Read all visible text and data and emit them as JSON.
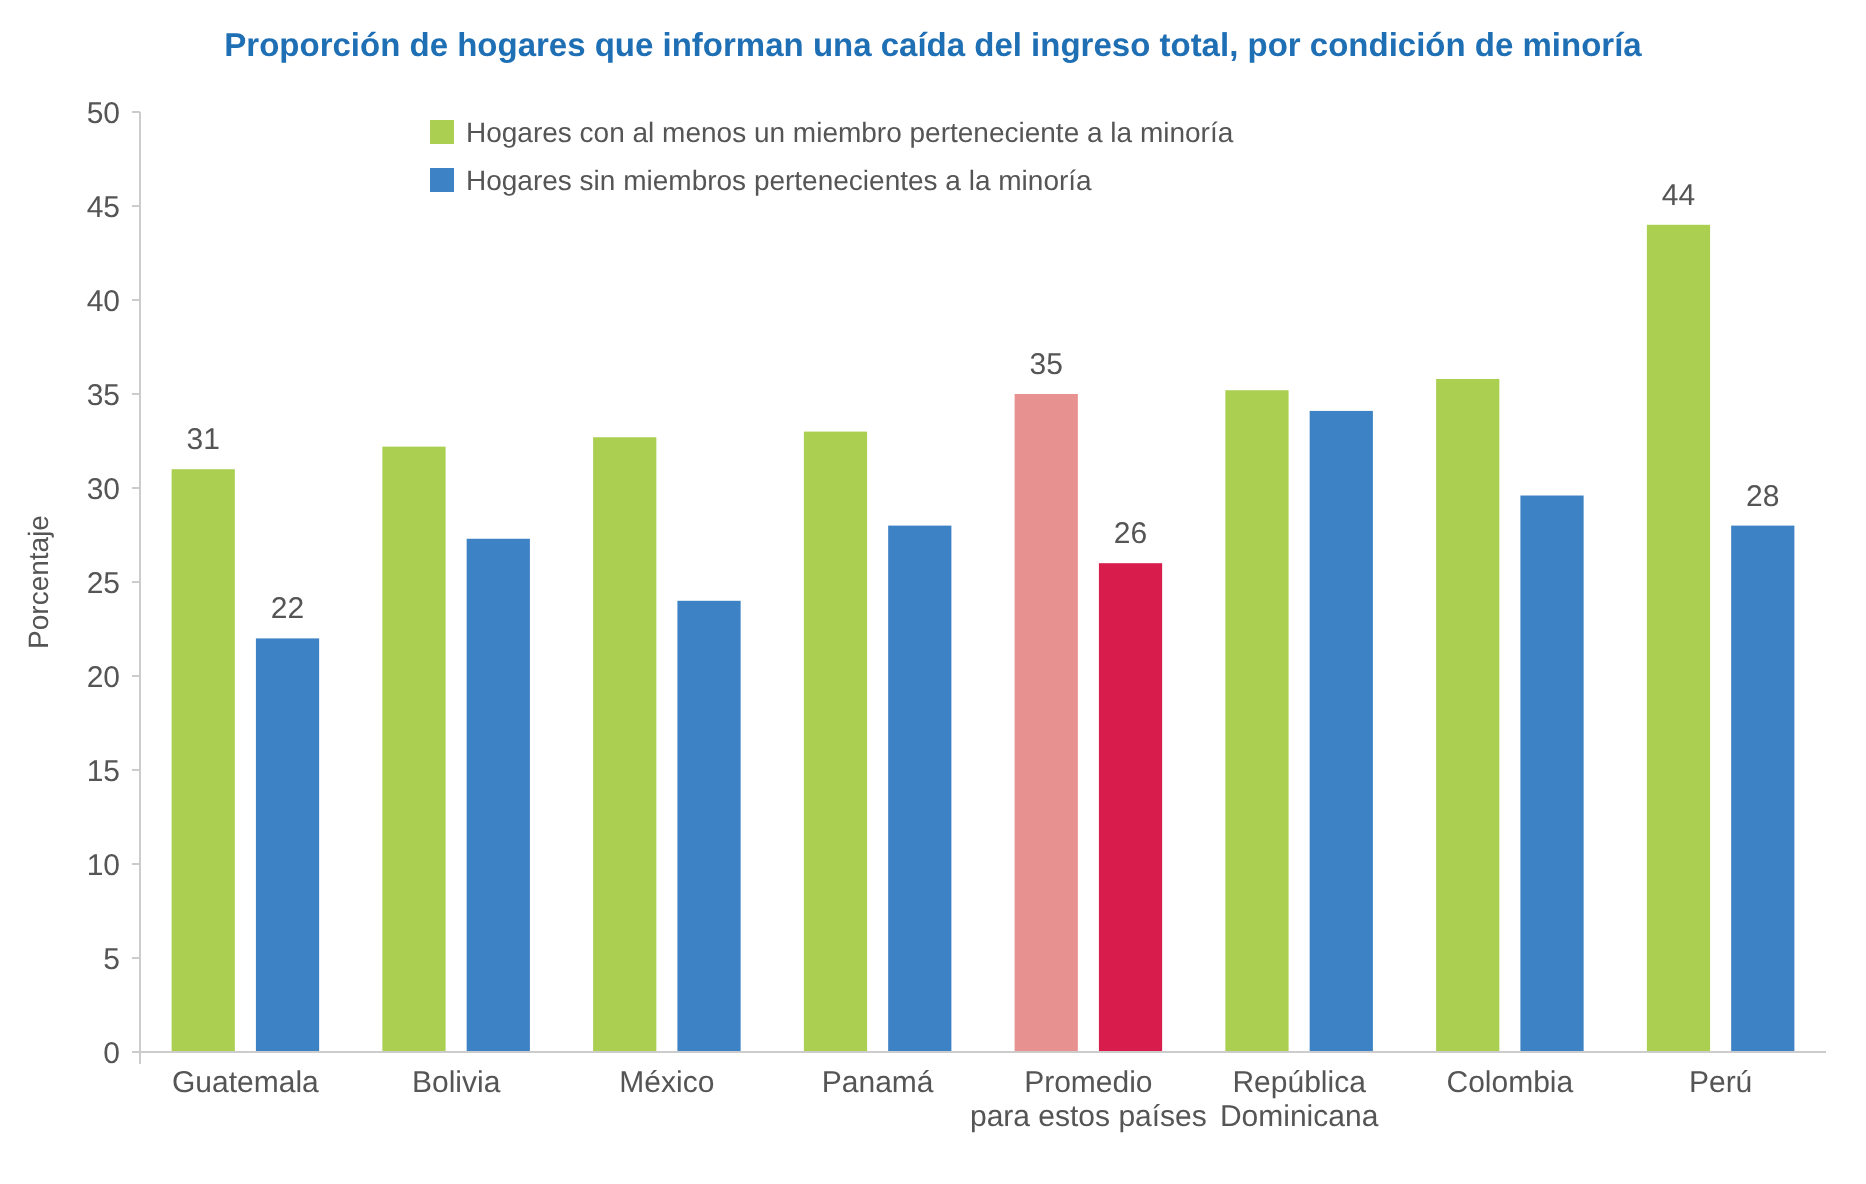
{
  "chart_data": {
    "type": "bar",
    "title": "Proporción de hogares que informan una caída del ingreso total, por condición de minoría",
    "ylabel": "Porcentaje",
    "categories": [
      "Guatemala",
      "Bolivia",
      "México",
      "Panamá",
      "Promedio\npara estos países",
      "República\nDominicana",
      "Colombia",
      "Perú"
    ],
    "series": [
      {
        "name": "Hogares con al menos un miembro perteneciente a la minoría",
        "color": "#aacf51",
        "colors": [
          "#aacf51",
          "#aacf51",
          "#aacf51",
          "#aacf51",
          "#e79190",
          "#aacf51",
          "#aacf51",
          "#aacf51"
        ],
        "values": [
          31,
          32.2,
          32.7,
          33,
          35,
          35.2,
          35.8,
          44
        ],
        "value_labels": [
          "31",
          null,
          null,
          null,
          "35",
          null,
          null,
          "44"
        ]
      },
      {
        "name": "Hogares sin miembros pertenecientes a la minoría",
        "color": "#3d82c4",
        "colors": [
          "#3d82c4",
          "#3d82c4",
          "#3d82c4",
          "#3d82c4",
          "#d81c4c",
          "#3d82c4",
          "#3d82c4",
          "#3d82c4"
        ],
        "values": [
          22,
          27.3,
          24,
          28,
          26,
          34.1,
          29.6,
          28
        ],
        "value_labels": [
          "22",
          null,
          null,
          null,
          "26",
          null,
          null,
          "28"
        ]
      }
    ],
    "ylim": [
      0,
      50
    ],
    "yticks": [
      0,
      5,
      10,
      15,
      20,
      25,
      30,
      35,
      40,
      45,
      50
    ],
    "grid": false,
    "legend": "top"
  }
}
